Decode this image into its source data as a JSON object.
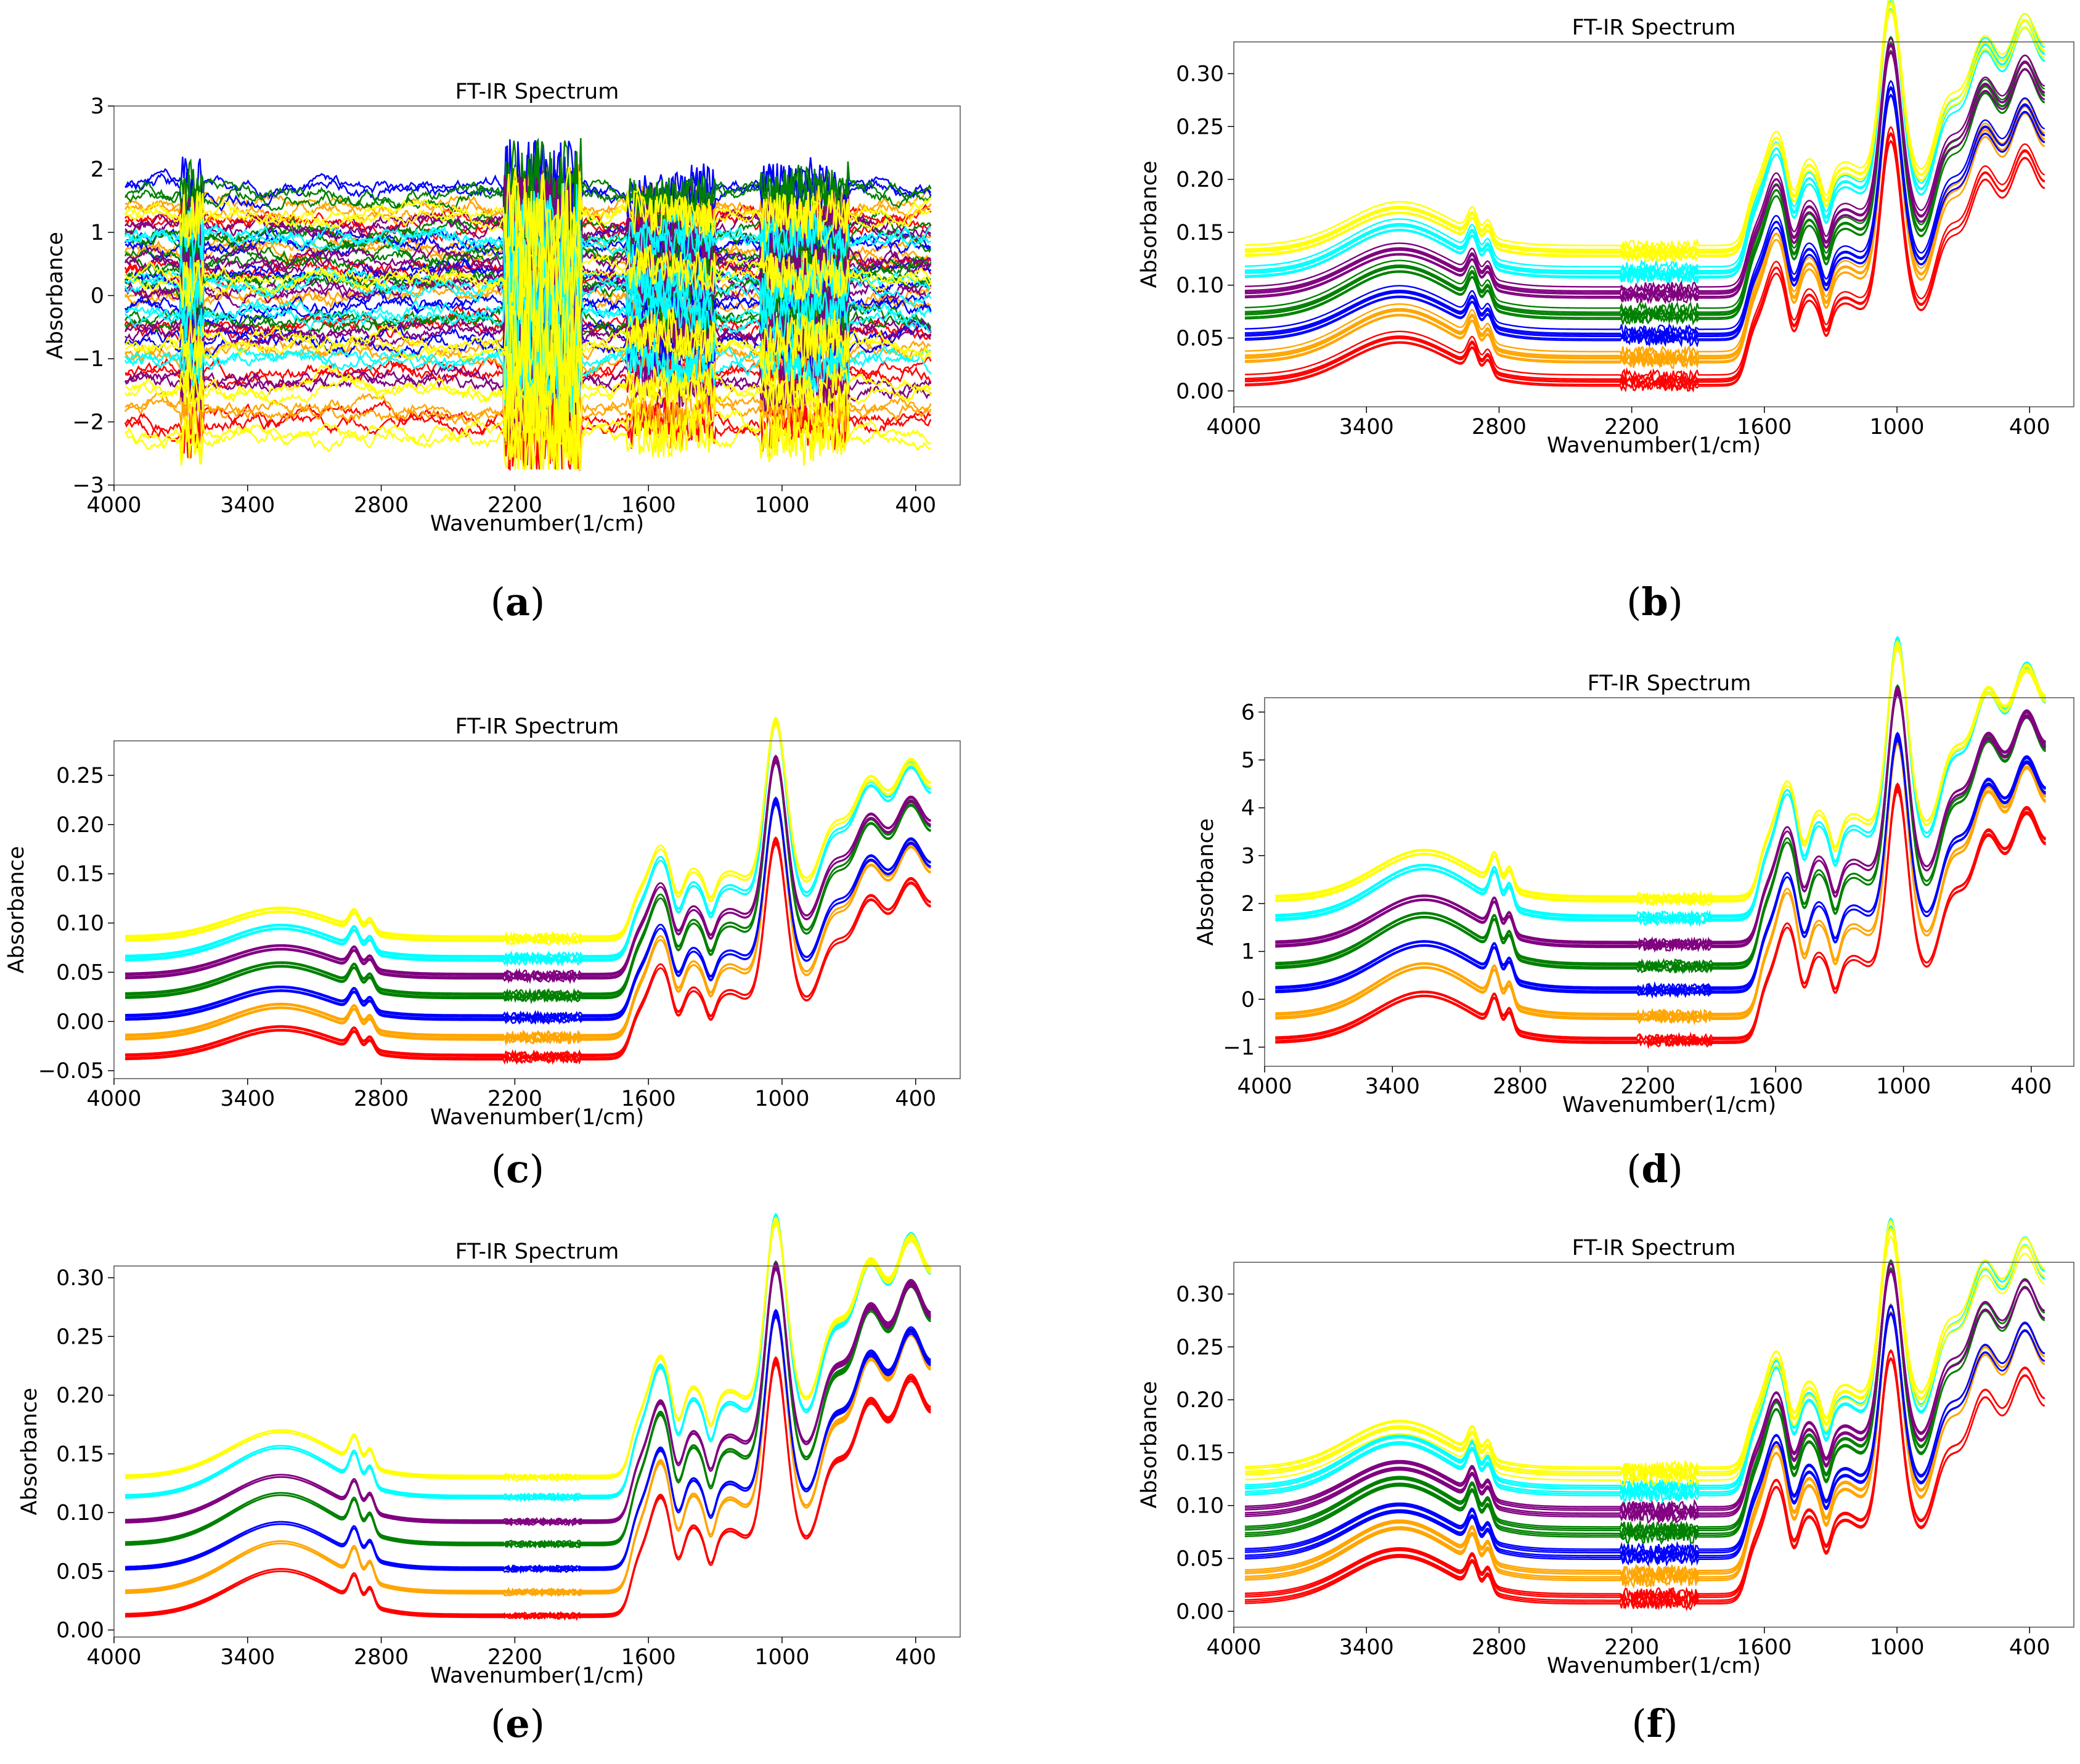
{
  "series_colors": [
    "#ff0000",
    "#ffa500",
    "#0000ff",
    "#008000",
    "#800080",
    "#00ffff",
    "#ffff00"
  ],
  "series_names": [
    "red",
    "orange",
    "blue",
    "green",
    "purple",
    "cyan",
    "yellow"
  ],
  "chart_data": [
    {
      "id": "a",
      "caption_letter": "a",
      "type": "line",
      "title": "FT-IR Spectrum",
      "xlabel": "Wavenumber(1/cm)",
      "ylabel": "Absorbance",
      "xlim": [
        4000,
        200
      ],
      "ylim": [
        -3,
        3
      ],
      "xticks": [
        4000,
        3400,
        2800,
        2200,
        1600,
        1000,
        400
      ],
      "xtick_labels": [
        "4000",
        "3400",
        "2800",
        "2200",
        "1600",
        "1000",
        "400"
      ],
      "yticks": [
        -3,
        -2,
        -1,
        0,
        1,
        2,
        3
      ],
      "ytick_labels": [
        "−3",
        "−2",
        "−1",
        "0",
        "1",
        "2",
        "3"
      ],
      "mode": "noisy",
      "series": [
        {
          "name": "red",
          "color": "#ff0000",
          "offsets": [
            -2.0,
            -1.2,
            -0.5,
            0.4,
            1.2
          ]
        },
        {
          "name": "orange",
          "color": "#ffa500",
          "offsets": [
            -1.8,
            -0.9,
            0.0,
            0.7,
            1.4
          ]
        },
        {
          "name": "blue",
          "color": "#0000ff",
          "offsets": [
            -0.7,
            -0.2,
            0.3,
            0.8,
            1.7
          ]
        },
        {
          "name": "green",
          "color": "#008000",
          "offsets": [
            -0.4,
            0.2,
            0.6,
            1.0,
            1.6
          ]
        },
        {
          "name": "purple",
          "color": "#800080",
          "offsets": [
            -1.4,
            -0.6,
            0.1,
            0.5,
            1.1
          ]
        },
        {
          "name": "cyan",
          "color": "#00ffff",
          "offsets": [
            -1.0,
            -0.3,
            0.2,
            0.9
          ]
        },
        {
          "name": "yellow",
          "color": "#ffff00",
          "offsets": [
            -2.2,
            -1.5,
            -0.8,
            0.3,
            1.3
          ]
        }
      ]
    },
    {
      "id": "b",
      "caption_letter": "b",
      "type": "line",
      "title": "FT-IR Spectrum",
      "xlabel": "Wavenumber(1/cm)",
      "ylabel": "Absorbance",
      "xlim": [
        4000,
        200
      ],
      "ylim": [
        -0.015,
        0.33
      ],
      "xticks": [
        4000,
        3400,
        2800,
        2200,
        1600,
        1000,
        400
      ],
      "xtick_labels": [
        "4000",
        "3400",
        "2800",
        "2200",
        "1600",
        "1000",
        "400"
      ],
      "yticks": [
        0.0,
        0.05,
        0.1,
        0.15,
        0.2,
        0.25,
        0.3
      ],
      "ytick_labels": [
        "0.00",
        "0.05",
        "0.10",
        "0.15",
        "0.20",
        "0.25",
        "0.30"
      ],
      "mode": "spectrum",
      "shape": {
        "broad_3300": 0.042,
        "peak_2900": 0.022,
        "peak_1600": 0.055,
        "plateau": 0.06,
        "peak_1000": 0.16,
        "end_rise": 0.17,
        "spread": 0.012
      },
      "series": [
        {
          "name": "red",
          "color": "#ff0000",
          "baseline": 0.01
        },
        {
          "name": "orange",
          "color": "#ffa500",
          "baseline": 0.032
        },
        {
          "name": "blue",
          "color": "#0000ff",
          "baseline": 0.053
        },
        {
          "name": "green",
          "color": "#008000",
          "baseline": 0.073
        },
        {
          "name": "purple",
          "color": "#800080",
          "baseline": 0.093
        },
        {
          "name": "cyan",
          "color": "#00ffff",
          "baseline": 0.112
        },
        {
          "name": "yellow",
          "color": "#ffff00",
          "baseline": 0.132
        }
      ]
    },
    {
      "id": "c",
      "caption_letter": "c",
      "type": "line",
      "title": "FT-IR Spectrum",
      "xlabel": "Wavenumber(1/cm)",
      "ylabel": "Absorbance",
      "xlim": [
        4000,
        200
      ],
      "ylim": [
        -0.058,
        0.285
      ],
      "xticks": [
        4000,
        3400,
        2800,
        2200,
        1600,
        1000,
        400
      ],
      "xtick_labels": [
        "4000",
        "3400",
        "2800",
        "2200",
        "1600",
        "1000",
        "400"
      ],
      "yticks": [
        -0.05,
        0.0,
        0.05,
        0.1,
        0.15,
        0.2,
        0.25
      ],
      "ytick_labels": [
        "−0.05",
        "0.00",
        "0.05",
        "0.10",
        "0.15",
        "0.20",
        "0.25"
      ],
      "mode": "spectrum",
      "shape": {
        "broad_3300": 0.03,
        "peak_2900": 0.018,
        "peak_1600": 0.05,
        "plateau": 0.05,
        "peak_1000": 0.16,
        "end_rise": 0.14,
        "spread": 0.008
      },
      "series": [
        {
          "name": "red",
          "color": "#ff0000",
          "baseline": -0.035
        },
        {
          "name": "orange",
          "color": "#ffa500",
          "baseline": -0.015
        },
        {
          "name": "blue",
          "color": "#0000ff",
          "baseline": 0.005
        },
        {
          "name": "green",
          "color": "#008000",
          "baseline": 0.027
        },
        {
          "name": "purple",
          "color": "#800080",
          "baseline": 0.047
        },
        {
          "name": "cyan",
          "color": "#00ffff",
          "baseline": 0.065
        },
        {
          "name": "yellow",
          "color": "#ffff00",
          "baseline": 0.085
        }
      ]
    },
    {
      "id": "d",
      "caption_letter": "d",
      "type": "line",
      "title": "FT-IR Spectrum",
      "xlabel": "Wavenumber(1/cm)",
      "ylabel": "Absorbance",
      "xlim": [
        4000,
        200
      ],
      "ylim": [
        -1.4,
        6.3
      ],
      "xticks": [
        4000,
        3400,
        2800,
        2200,
        1600,
        1000,
        400
      ],
      "xtick_labels": [
        "4000",
        "3400",
        "2800",
        "2200",
        "1600",
        "1000",
        "400"
      ],
      "yticks": [
        -1,
        0,
        1,
        2,
        3,
        4,
        5,
        6
      ],
      "ytick_labels": [
        "−1",
        "0",
        "1",
        "2",
        "3",
        "4",
        "5",
        "6"
      ],
      "mode": "spectrum",
      "shape": {
        "broad_3300": 1.0,
        "peak_2900": 0.6,
        "peak_1600": 1.3,
        "plateau": 1.3,
        "peak_1000": 3.7,
        "end_rise": 3.8,
        "spread": 0.18
      },
      "series": [
        {
          "name": "red",
          "color": "#ff0000",
          "baseline": -0.85
        },
        {
          "name": "orange",
          "color": "#ffa500",
          "baseline": -0.35
        },
        {
          "name": "blue",
          "color": "#0000ff",
          "baseline": 0.2
        },
        {
          "name": "green",
          "color": "#008000",
          "baseline": 0.7
        },
        {
          "name": "purple",
          "color": "#800080",
          "baseline": 1.15
        },
        {
          "name": "cyan",
          "color": "#00ffff",
          "baseline": 1.7
        },
        {
          "name": "yellow",
          "color": "#ffff00",
          "baseline": 2.1
        }
      ]
    },
    {
      "id": "e",
      "caption_letter": "e",
      "type": "line",
      "title": "FT-IR Spectrum",
      "xlabel": "Wavenumber(1/cm)",
      "ylabel": "Absorbance",
      "xlim": [
        4000,
        200
      ],
      "ylim": [
        -0.006,
        0.31
      ],
      "xticks": [
        4000,
        3400,
        2800,
        2200,
        1600,
        1000,
        400
      ],
      "xtick_labels": [
        "4000",
        "3400",
        "2800",
        "2200",
        "1600",
        "1000",
        "400"
      ],
      "yticks": [
        0.0,
        0.05,
        0.1,
        0.15,
        0.2,
        0.25,
        0.3
      ],
      "ytick_labels": [
        "0.00",
        "0.05",
        "0.10",
        "0.15",
        "0.20",
        "0.25",
        "0.30"
      ],
      "mode": "spectrum",
      "shape": {
        "broad_3300": 0.04,
        "peak_2900": 0.022,
        "peak_1600": 0.055,
        "plateau": 0.055,
        "peak_1000": 0.15,
        "end_rise": 0.16,
        "spread": 0.004
      },
      "series": [
        {
          "name": "red",
          "color": "#ff0000",
          "baseline": 0.012
        },
        {
          "name": "orange",
          "color": "#ffa500",
          "baseline": 0.032
        },
        {
          "name": "blue",
          "color": "#0000ff",
          "baseline": 0.052
        },
        {
          "name": "green",
          "color": "#008000",
          "baseline": 0.073
        },
        {
          "name": "purple",
          "color": "#800080",
          "baseline": 0.092
        },
        {
          "name": "cyan",
          "color": "#00ffff",
          "baseline": 0.113
        },
        {
          "name": "yellow",
          "color": "#ffff00",
          "baseline": 0.13
        }
      ]
    },
    {
      "id": "f",
      "caption_letter": "f",
      "type": "line",
      "title": "FT-IR Spectrum",
      "xlabel": "Wavenumber(1/cm)",
      "ylabel": "Absorbance",
      "xlim": [
        4000,
        200
      ],
      "ylim": [
        -0.015,
        0.33
      ],
      "xticks": [
        4000,
        3400,
        2800,
        2200,
        1600,
        1000,
        400
      ],
      "xtick_labels": [
        "4000",
        "3400",
        "2800",
        "2200",
        "1600",
        "1000",
        "400"
      ],
      "yticks": [
        0.0,
        0.05,
        0.1,
        0.15,
        0.2,
        0.25,
        0.3
      ],
      "ytick_labels": [
        "0.00",
        "0.05",
        "0.10",
        "0.15",
        "0.20",
        "0.25",
        "0.30"
      ],
      "mode": "spectrum",
      "shape": {
        "broad_3300": 0.045,
        "peak_2900": 0.024,
        "peak_1600": 0.06,
        "plateau": 0.058,
        "peak_1000": 0.16,
        "end_rise": 0.17,
        "spread": 0.014
      },
      "series": [
        {
          "name": "red",
          "color": "#ff0000",
          "baseline": 0.01
        },
        {
          "name": "orange",
          "color": "#ffa500",
          "baseline": 0.032
        },
        {
          "name": "blue",
          "color": "#0000ff",
          "baseline": 0.052
        },
        {
          "name": "green",
          "color": "#008000",
          "baseline": 0.073
        },
        {
          "name": "purple",
          "color": "#800080",
          "baseline": 0.092
        },
        {
          "name": "cyan",
          "color": "#00ffff",
          "baseline": 0.112
        },
        {
          "name": "yellow",
          "color": "#ffff00",
          "baseline": 0.131
        }
      ]
    }
  ]
}
